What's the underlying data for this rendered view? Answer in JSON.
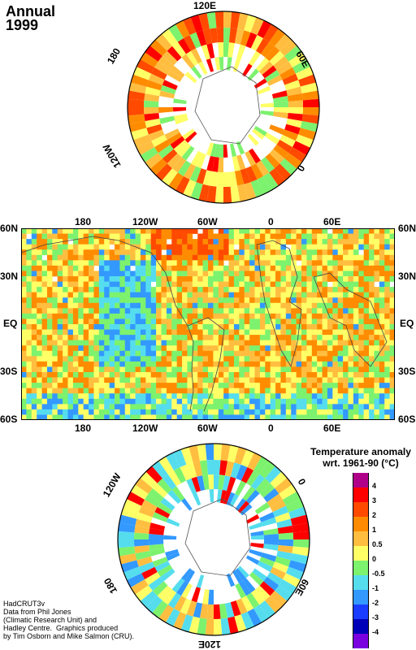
{
  "title": {
    "period": "Annual",
    "year": "1999"
  },
  "north_polar": {
    "labels": {
      "top": "120E",
      "left": "180",
      "right": "60E",
      "lower_left": "120W",
      "lower_right": "0"
    }
  },
  "world_map": {
    "lon_labels": [
      "180",
      "120W",
      "60W",
      "0",
      "60E"
    ],
    "lat_labels": [
      "60N",
      "30N",
      "EQ",
      "30S",
      "60S"
    ]
  },
  "south_polar": {
    "labels": {
      "upper_left": "120W",
      "upper_right": "0",
      "lower_left": "180",
      "lower_right": "60E",
      "bottom": "120E"
    }
  },
  "legend": {
    "title_line1": "Temperature anomaly",
    "title_line2": "wrt. 1961-90  (°C)",
    "bins": [
      {
        "color": "#b0008a",
        "label": "4"
      },
      {
        "color": "#ff0000",
        "label": "3"
      },
      {
        "color": "#ff4a00",
        "label": "2"
      },
      {
        "color": "#ff8c00",
        "label": "1"
      },
      {
        "color": "#ffbe40",
        "label": "0.5"
      },
      {
        "color": "#ffff66",
        "label": "0"
      },
      {
        "color": "#7cf26e",
        "label": "-0.5"
      },
      {
        "color": "#55ddee",
        "label": "-1"
      },
      {
        "color": "#3399ff",
        "label": "-2"
      },
      {
        "color": "#1a3cff",
        "label": "-3"
      },
      {
        "color": "#0000b8",
        "label": "-4"
      },
      {
        "color": "#7a00e0",
        "label": ""
      }
    ]
  },
  "credits": "HadCRUT3v\nData from Phil Jones\n(Climatic Research Unit) and\nHadley Centre.  Graphics produced\nby Tim Osborn and Mike Salmon (CRU)."
}
